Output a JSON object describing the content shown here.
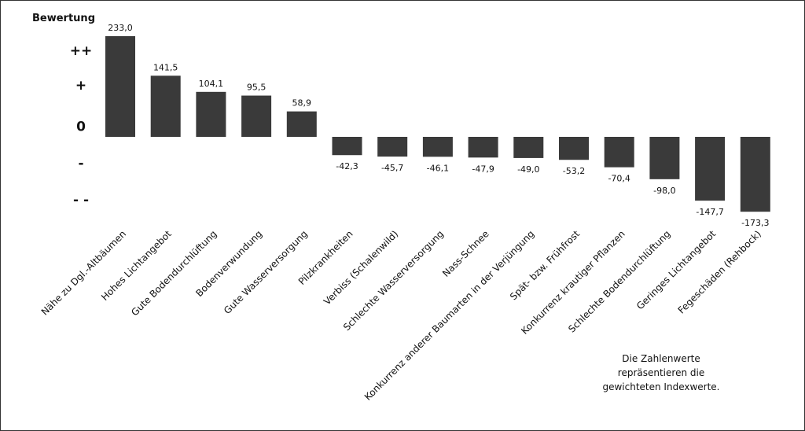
{
  "chart_data": {
    "type": "bar",
    "ylabel": "Bewertung",
    "y_scale_labels": [
      "++",
      "+",
      "0",
      "-",
      "- -"
    ],
    "y_scale_values": [
      200,
      120,
      25,
      -60,
      -145
    ],
    "ylim": [
      -180,
      240
    ],
    "bar_color": "#3a3a3a",
    "categories": [
      "Nähe zu Dgl.-Altbäumen",
      "Hohes Lichtangebot",
      "Gute Bodendurchlüftung",
      "Bodenverwundung",
      "Gute Wasserversorgung",
      "Pilzkrankheiten",
      "Verbiss (Schalenwild)",
      "Schlechte Wasserversorgung",
      "Nass-Schnee",
      "Konkurrenz anderer Baumarten in der Verjüngung",
      "Spät- bzw. Frühfrost",
      "Konkurrenz krautiger Pflanzen",
      "Schlechte Bodendurchlüftung",
      "Geringes Lichtangebot",
      "Fegeschäden (Rehbock)"
    ],
    "values": [
      233.0,
      141.5,
      104.1,
      95.5,
      58.9,
      -42.3,
      -45.7,
      -46.1,
      -47.9,
      -49.0,
      -53.2,
      -70.4,
      -98.0,
      -147.7,
      -173.3
    ],
    "value_labels": [
      "233,0",
      "141,5",
      "104,1",
      "95,5",
      "58,9",
      "-42,3",
      "-45,7",
      "-46,1",
      "-47,9",
      "-49,0",
      "-53,2",
      "-70,4",
      "-98,0",
      "-147,7",
      "-173,3"
    ],
    "grid": false,
    "legend": "none"
  },
  "note": {
    "line1": "Die Zahlenwerte",
    "line2": "repräsentieren die",
    "line3": "gewichteten Indexwerte."
  }
}
